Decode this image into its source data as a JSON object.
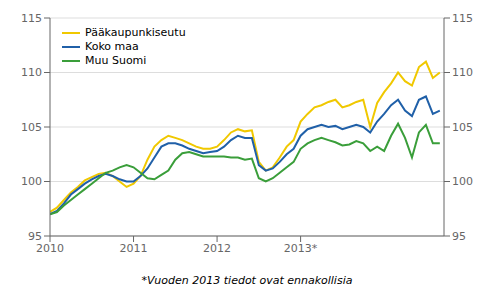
{
  "chart_data": {
    "type": "line",
    "annotation": "*Vuoden 2013 tiedot ovat ennakollisia",
    "x": [
      2010.0,
      2010.0833333333333,
      2010.1666666666667,
      2010.25,
      2010.3333333333333,
      2010.4166666666667,
      2010.5,
      2010.5833333333333,
      2010.6666666666667,
      2010.75,
      2010.8333333333333,
      2010.9166666666667,
      2011.0,
      2011.0833333333333,
      2011.1666666666667,
      2011.25,
      2011.3333333333333,
      2011.4166666666667,
      2011.5,
      2011.5833333333333,
      2011.6666666666667,
      2011.75,
      2011.8333333333333,
      2011.9166666666667,
      2012.0,
      2012.0833333333333,
      2012.1666666666667,
      2012.25,
      2012.3333333333333,
      2012.4166666666667,
      2012.5,
      2012.5833333333333,
      2012.6666666666667,
      2012.75,
      2012.8333333333333,
      2012.9166666666667,
      2013.0,
      2013.0833333333333,
      2013.1666666666667,
      2013.25,
      2013.3333333333333,
      2013.4166666666667,
      2013.5,
      2013.5833333333333,
      2013.6666666666667,
      2013.75,
      2013.8333333333333,
      2013.9166666666667,
      2014.0,
      2014.0833333333333,
      2014.1666666666667,
      2014.25,
      2014.3333333333333,
      2014.4166666666667,
      2014.5,
      2014.5833333333333,
      2014.6666666666667
    ],
    "series": [
      {
        "name": "Pääkaupunkiseutu",
        "color": "#f0c800",
        "values": [
          97.2,
          97.6,
          98.3,
          99.0,
          99.5,
          100.1,
          100.4,
          100.7,
          100.8,
          100.5,
          100.0,
          99.5,
          99.8,
          100.5,
          102.0,
          103.2,
          103.8,
          104.2,
          104.0,
          103.8,
          103.5,
          103.2,
          103.0,
          103.0,
          103.2,
          103.8,
          104.5,
          104.8,
          104.6,
          104.7,
          101.8,
          101.0,
          101.3,
          102.2,
          103.2,
          103.8,
          105.5,
          106.2,
          106.8,
          107.0,
          107.3,
          107.5,
          106.8,
          107.0,
          107.3,
          107.5,
          105.0,
          107.2,
          108.2,
          109.0,
          110.0,
          109.2,
          108.8,
          110.5,
          111.0,
          109.5,
          110.0
        ]
      },
      {
        "name": "Koko maa",
        "color": "#2060a8",
        "values": [
          97.0,
          97.3,
          98.0,
          98.8,
          99.3,
          99.8,
          100.2,
          100.5,
          100.7,
          100.5,
          100.2,
          100.0,
          100.0,
          100.5,
          101.2,
          102.2,
          103.2,
          103.5,
          103.5,
          103.3,
          103.0,
          102.8,
          102.6,
          102.7,
          102.8,
          103.2,
          103.8,
          104.2,
          104.0,
          104.0,
          101.5,
          101.0,
          101.2,
          101.8,
          102.5,
          103.0,
          104.2,
          104.8,
          105.0,
          105.2,
          105.0,
          105.1,
          104.8,
          105.0,
          105.2,
          105.0,
          104.5,
          105.5,
          106.2,
          107.0,
          107.5,
          106.5,
          106.0,
          107.5,
          107.8,
          106.2,
          106.5
        ]
      },
      {
        "name": "Muu Suomi",
        "color": "#3a9e3a",
        "values": [
          97.0,
          97.2,
          97.8,
          98.3,
          98.8,
          99.3,
          99.8,
          100.3,
          100.8,
          101.0,
          101.3,
          101.5,
          101.3,
          100.8,
          100.3,
          100.2,
          100.6,
          101.0,
          102.0,
          102.6,
          102.7,
          102.5,
          102.3,
          102.3,
          102.3,
          102.3,
          102.2,
          102.2,
          102.0,
          102.1,
          100.3,
          100.0,
          100.3,
          100.8,
          101.3,
          101.8,
          103.0,
          103.5,
          103.8,
          104.0,
          103.8,
          103.6,
          103.3,
          103.4,
          103.7,
          103.5,
          102.8,
          103.2,
          102.8,
          104.2,
          105.3,
          104.0,
          102.2,
          104.5,
          105.2,
          103.5,
          103.5
        ]
      }
    ],
    "xlim": [
      2010.0,
      2014.7166666666667
    ],
    "xticks": [
      2010,
      2011,
      2012,
      {
        "value": 2013,
        "label": "2013*"
      }
    ],
    "ylim": [
      95,
      115
    ],
    "yticks": [
      95,
      100,
      105,
      110,
      115
    ],
    "y2lim": [
      95,
      115
    ],
    "y2ticks": [
      95,
      100,
      105,
      110,
      115
    ],
    "grid": true,
    "legend": "upper left"
  }
}
